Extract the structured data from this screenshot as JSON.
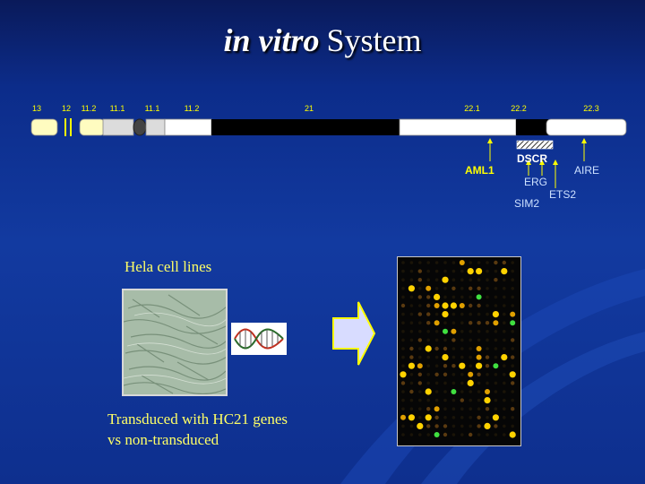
{
  "title": {
    "italic": "in vitro",
    "rest": "System"
  },
  "chromosome": {
    "bands": [
      "13",
      "12",
      "11.2",
      "11.1",
      "11.1",
      "11.2",
      "21",
      "22.1",
      "22.2",
      "22.3"
    ],
    "genes": {
      "aml1": "AML1",
      "dscr": "DSCR",
      "erg": "ERG",
      "sim2": "SIM2",
      "ets2": "ETS2",
      "aire": "AIRE"
    },
    "colors": {
      "label_yellow": "#ffff00",
      "gene_blue": "#cce0ff"
    }
  },
  "hela_label": "Hela cell lines",
  "caption": {
    "line1": "Transduced with HC21 genes",
    "line2": "vs non-transduced"
  },
  "colors": {
    "background": "#123aa0",
    "text_yellow": "#ffff66",
    "arrow_fill": "#d8dcff",
    "arrow_stroke": "#ffff00"
  }
}
